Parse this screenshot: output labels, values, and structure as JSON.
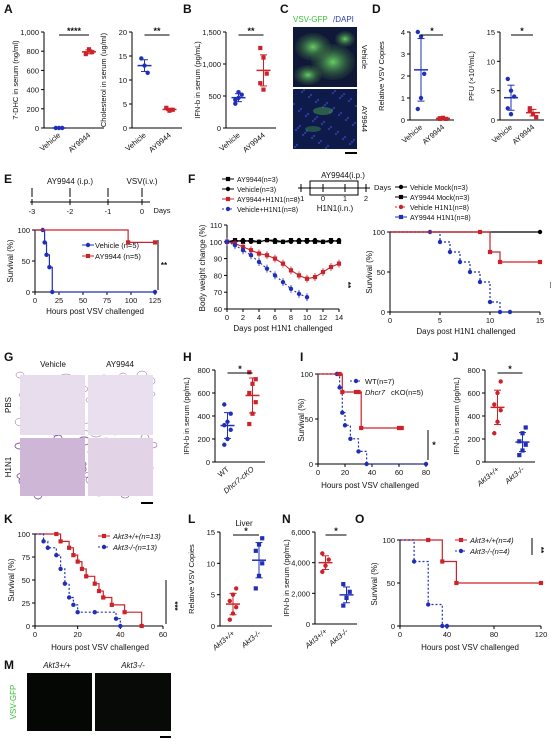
{
  "panels": {
    "A": "A",
    "B": "B",
    "C": "C",
    "D": "D",
    "E": "E",
    "F": "F",
    "G": "G",
    "H": "H",
    "I": "I",
    "J": "J",
    "K": "K",
    "L": "L",
    "M": "M",
    "N": "N",
    "O": "O"
  },
  "colors": {
    "red": "#cc2229",
    "blue": "#1f2fb8",
    "black": "#000000",
    "green": "#39c43a"
  },
  "A": {
    "chart1": {
      "ylabel": "7-DHC in serum (ng/ml)",
      "yticks": [
        "0",
        "200",
        "400",
        "600",
        "800",
        "1,000"
      ],
      "categories": [
        "Vehicle",
        "AY9944"
      ],
      "sig": "****"
    },
    "chart2": {
      "ylabel": "Cholesterol in serum (ug/ml)",
      "yticks": [
        "0",
        "5",
        "10",
        "15",
        "20"
      ],
      "categories": [
        "Vehicle",
        "AY9944"
      ],
      "sig": "**"
    }
  },
  "B": {
    "ylabel": "IFN-b in serum (pg/mL)",
    "yticks": [
      "0",
      "500",
      "1,000",
      "1,500"
    ],
    "categories": [
      "Vehicle",
      "AY9944"
    ],
    "sig": "**"
  },
  "C": {
    "title_green": "VSV-GFP",
    "title_blue": "/DAPI",
    "row1": "Vehicle",
    "row2": "AY9944"
  },
  "D": {
    "chart1": {
      "ylabel": "Relative VSV Copies",
      "yticks": [
        "0",
        "1",
        "2",
        "3",
        "4"
      ],
      "categories": [
        "Vehicle",
        "AY9944"
      ],
      "sig": "*"
    },
    "chart2": {
      "ylabel": "PFU (×10³/mL)",
      "yticks": [
        "0",
        "5",
        "10",
        "15"
      ],
      "categories": [
        "Vehicle",
        "AY9944"
      ],
      "sig": "*"
    }
  },
  "E": {
    "timeline": {
      "top1": "AY9944 (i.p.)",
      "top2": "VSV(i.v.)",
      "ticks": [
        "-3",
        "-2",
        "-1",
        "0"
      ],
      "days": "Days"
    },
    "ylabel": "Survival (%)",
    "xlabel": "Hours post VSV challenged",
    "yticks": [
      "0",
      "50",
      "100"
    ],
    "xticks": [
      "0",
      "25",
      "50",
      "75",
      "100",
      "125"
    ],
    "legend": [
      "Vehicle (n=5)",
      "AY9944 (n=5)"
    ],
    "sig": "**"
  },
  "F": {
    "timeline": {
      "top1": "AY9944(i.p.)",
      "days": "Days",
      "bottom": "H1N1(i.n.)",
      "ticks": [
        "-1",
        "0",
        "1",
        "2"
      ]
    },
    "left_legend": [
      "AY9944(n=3)",
      "Vehicle(n=3)",
      "AY9944+H1N1(n=8)",
      "Vehicle+H1N1(n=8)"
    ],
    "ylabel": "Body weight change (%)",
    "yticks": [
      "60",
      "70",
      "80",
      "90",
      "100",
      "110"
    ],
    "xticks": [
      "0",
      "2",
      "4",
      "6",
      "8",
      "10",
      "12",
      "14"
    ],
    "xlabel": "Days post H1N1 challenged",
    "sig_left": "**",
    "right_legend": [
      "Vehicle Mock(n=3)",
      "AY9944 Mock(n=3)",
      "Vehicle H1N1(n=8)",
      "AY9944 H1N1(n=8)"
    ],
    "right_ylabel": "Survival (%)",
    "right_yticks": [
      "0",
      "50",
      "100"
    ],
    "right_xticks": [
      "0",
      "5",
      "10",
      "15"
    ],
    "right_xlabel": "Days post H1N1 challenged",
    "sig_right": "**"
  },
  "G": {
    "col1": "Vehicle",
    "col2": "AY9944",
    "row1": "PBS",
    "row2": "H1N1"
  },
  "H": {
    "ylabel": "IFN-b in serum (pg/mL)",
    "yticks": [
      "0",
      "200",
      "400",
      "600",
      "800"
    ],
    "categories": [
      "WT",
      "Dhcr7-cKO"
    ],
    "sig": "*"
  },
  "I": {
    "legend": [
      "WT(n=7)",
      "cKO(n=5)"
    ],
    "legend_italic": "Dhcr7",
    "ylabel": "Survival (%)",
    "yticks": [
      "0",
      "50",
      "100"
    ],
    "xticks": [
      "0",
      "20",
      "40",
      "60",
      "80"
    ],
    "xlabel": "Hours post VSV challenged",
    "sig": "*"
  },
  "J": {
    "ylabel": "IFN-b in serum (pg/mL)",
    "yticks": [
      "0",
      "200",
      "400",
      "600",
      "800"
    ],
    "categories": [
      "Akt3+/+",
      "Akt3-/-"
    ],
    "sig": "*"
  },
  "K": {
    "legend": [
      "Akt3+/+(n=13)",
      "Akt3-/-(n=13)"
    ],
    "ylabel": "Survival (%)",
    "yticks": [
      "0",
      "25",
      "50",
      "75",
      "100"
    ],
    "xticks": [
      "0",
      "20",
      "40",
      "60"
    ],
    "xlabel": "Hours post VSV challenged",
    "sig": "***"
  },
  "L": {
    "title": "Liver",
    "ylabel": "Relative VSV Copies",
    "yticks": [
      "0",
      "5",
      "10",
      "15"
    ],
    "categories": [
      "Akt3+/+",
      "Akt3-/-"
    ],
    "sig": "*"
  },
  "M": {
    "col1": "Akt3+/+",
    "col2": "Akt3-/-",
    "side": "VSV-GFP"
  },
  "N": {
    "ylabel": "IFN-b in serum (pg/mL)",
    "yticks": [
      "0",
      "2,000",
      "4,000",
      "6,000"
    ],
    "categories": [
      "Akt3+/+",
      "Akt3-/-"
    ],
    "sig": "*"
  },
  "O": {
    "legend": [
      "Akt3+/+(n=4)",
      "Akt3-/-(n=4)"
    ],
    "ylabel": "Survival (%)",
    "yticks": [
      "0",
      "50",
      "100"
    ],
    "xticks": [
      "0",
      "40",
      "80",
      "120"
    ],
    "xlabel": "Hours post VSV challenged",
    "sig": "**"
  },
  "chart_data": [
    {
      "panel": "A-left",
      "type": "scatter",
      "categories": [
        "Vehicle",
        "AY9944"
      ],
      "series": [
        {
          "values": [
            [
              0,
              0,
              0
            ],
            [
              770,
              820,
              790
            ]
          ]
        }
      ],
      "ylim": [
        0,
        1000
      ]
    },
    {
      "panel": "A-right",
      "type": "scatter",
      "categories": [
        "Vehicle",
        "AY9944"
      ],
      "series": [
        {
          "values": [
            [
              14.5,
              13,
              11.5
            ],
            [
              4.2,
              3.6,
              3.8
            ]
          ]
        }
      ],
      "ylim": [
        0,
        20
      ]
    },
    {
      "panel": "B",
      "type": "scatter",
      "categories": [
        "Vehicle",
        "AY9944"
      ],
      "series": [
        {
          "values": [
            [
              380,
              470,
              520,
              440,
              560
            ],
            [
              700,
              1100,
              850,
              1250,
              600
            ]
          ]
        }
      ],
      "ylim": [
        0,
        1500
      ]
    },
    {
      "panel": "D-left",
      "type": "scatter",
      "categories": [
        "Vehicle",
        "AY9944"
      ],
      "series": [
        {
          "values": [
            [
              4.0,
              3.8,
              2.1,
              0.5,
              1.0
            ],
            [
              0.05,
              0.1,
              0.05,
              0.08
            ]
          ]
        }
      ],
      "ylim": [
        0,
        4
      ]
    },
    {
      "panel": "D-right",
      "type": "scatter",
      "categories": [
        "Vehicle",
        "AY9944"
      ],
      "series": [
        {
          "values": [
            [
              7,
              5,
              4,
              2,
              1
            ],
            [
              2,
              1,
              0.5,
              1.5
            ]
          ]
        }
      ],
      "ylim": [
        0,
        15
      ]
    },
    {
      "panel": "E",
      "type": "line",
      "series": [
        {
          "name": "Vehicle (n=5)",
          "x": [
            0,
            8,
            10,
            12,
            15,
            18,
            125
          ],
          "y": [
            100,
            100,
            80,
            60,
            40,
            0,
            0
          ]
        },
        {
          "name": "AY9944 (n=5)",
          "x": [
            0,
            97,
            125
          ],
          "y": [
            100,
            80,
            80
          ]
        }
      ],
      "xlim": [
        0,
        125
      ],
      "ylim": [
        0,
        100
      ]
    },
    {
      "panel": "F-left",
      "type": "line",
      "x": [
        0,
        1,
        2,
        3,
        4,
        5,
        6,
        7,
        8,
        9,
        10,
        11,
        12,
        13,
        14
      ],
      "series": [
        {
          "name": "AY9944(n=3)",
          "values": [
            100,
            101,
            100,
            101,
            100,
            101,
            100,
            100,
            101,
            100,
            101,
            100,
            100,
            101,
            100
          ]
        },
        {
          "name": "Vehicle(n=3)",
          "values": [
            100,
            100,
            101,
            100,
            100,
            101,
            101,
            100,
            100,
            101,
            100,
            101,
            100,
            100,
            101
          ]
        },
        {
          "name": "AY9944+H1N1(n=8)",
          "values": [
            100,
            99,
            97,
            95,
            93,
            92,
            90,
            87,
            83,
            80,
            78,
            79,
            82,
            85,
            87
          ]
        },
        {
          "name": "Vehicle+H1N1(n=8)",
          "values": [
            100,
            98,
            95,
            92,
            88,
            84,
            80,
            76,
            72,
            69,
            67,
            null,
            null,
            null,
            null
          ]
        }
      ],
      "ylim": [
        60,
        110
      ]
    },
    {
      "panel": "F-right",
      "type": "line",
      "series": [
        {
          "name": "Vehicle Mock(n=3)",
          "x": [
            0,
            15
          ],
          "y": [
            100,
            100
          ]
        },
        {
          "name": "AY9944 Mock(n=3)",
          "x": [
            0,
            15
          ],
          "y": [
            100,
            100
          ]
        },
        {
          "name": "Vehicle H1N1(n=8)",
          "x": [
            0,
            4,
            5,
            6,
            7,
            8,
            9,
            10,
            11,
            12
          ],
          "y": [
            100,
            100,
            87.5,
            75,
            62.5,
            50,
            37.5,
            12.5,
            0,
            0
          ]
        },
        {
          "name": "AY9944 H1N1(n=8)",
          "x": [
            0,
            9,
            10,
            11,
            15
          ],
          "y": [
            100,
            100,
            75,
            62.5,
            62.5
          ]
        }
      ],
      "xlim": [
        0,
        15
      ],
      "ylim": [
        0,
        100
      ]
    },
    {
      "panel": "H",
      "type": "scatter",
      "categories": [
        "WT",
        "Dhcr7-cKO"
      ],
      "series": [
        {
          "values": [
            [
              150,
              200,
              280,
              320,
              350,
              420,
              500
            ],
            [
              330,
              420,
              520,
              600,
              680,
              720,
              780
            ]
          ]
        }
      ],
      "ylim": [
        0,
        800
      ]
    },
    {
      "panel": "I",
      "type": "line",
      "series": [
        {
          "name": "WT(n=7)",
          "x": [
            0,
            14,
            16,
            18,
            20,
            24,
            30,
            36,
            80
          ],
          "y": [
            100,
            100,
            85,
            57,
            43,
            28,
            14,
            0,
            0
          ]
        },
        {
          "name": "Dhcr7 cKO(n=5)",
          "x": [
            0,
            16,
            18,
            30,
            32,
            60,
            62
          ],
          "y": [
            100,
            100,
            80,
            80,
            40,
            40,
            40
          ]
        }
      ],
      "xlim": [
        0,
        80
      ],
      "ylim": [
        0,
        100
      ]
    },
    {
      "panel": "J",
      "type": "scatter",
      "categories": [
        "Akt3+/+",
        "Akt3-/-"
      ],
      "series": [
        {
          "values": [
            [
              250,
              350,
              450,
              500,
              600,
              700
            ],
            [
              60,
              100,
              150,
              180,
              250,
              300
            ]
          ]
        }
      ],
      "ylim": [
        0,
        800
      ]
    },
    {
      "panel": "K",
      "type": "line",
      "series": [
        {
          "name": "Akt3+/+(n=13)",
          "x": [
            0,
            10,
            12,
            16,
            18,
            20,
            22,
            24,
            28,
            30,
            32,
            36,
            42,
            50
          ],
          "y": [
            100,
            100,
            92,
            85,
            77,
            70,
            62,
            54,
            46,
            38,
            31,
            23,
            15,
            0
          ]
        },
        {
          "name": "Akt3-/-(n=13)",
          "x": [
            0,
            4,
            6,
            10,
            12,
            14,
            16,
            18,
            20,
            28,
            38,
            40
          ],
          "y": [
            100,
            92,
            85,
            77,
            62,
            46,
            31,
            23,
            15,
            15,
            8,
            0
          ]
        }
      ],
      "xlim": [
        0,
        60
      ],
      "ylim": [
        0,
        100
      ]
    },
    {
      "panel": "L",
      "type": "scatter",
      "categories": [
        "Akt3+/+",
        "Akt3-/-"
      ],
      "series": [
        {
          "values": [
            [
              1,
              2,
              3,
              4,
              5,
              6
            ],
            [
              6,
              8,
              10,
              12,
              13,
              14
            ]
          ]
        }
      ],
      "ylim": [
        0,
        15
      ]
    },
    {
      "panel": "N",
      "type": "scatter",
      "categories": [
        "Akt3+/+",
        "Akt3-/-"
      ],
      "series": [
        {
          "values": [
            [
              3400,
              3800,
              4200,
              4600
            ],
            [
              1200,
              1700,
              2100,
              2600
            ]
          ]
        }
      ],
      "ylim": [
        0,
        6000
      ]
    },
    {
      "panel": "O",
      "type": "line",
      "series": [
        {
          "name": "Akt3+/+(n=4)",
          "x": [
            0,
            24,
            36,
            48,
            120
          ],
          "y": [
            100,
            100,
            75,
            50,
            50
          ]
        },
        {
          "name": "Akt3-/-(n=4)",
          "x": [
            0,
            12,
            24,
            36,
            40
          ],
          "y": [
            100,
            75,
            25,
            0,
            0
          ]
        }
      ],
      "xlim": [
        0,
        120
      ],
      "ylim": [
        0,
        100
      ]
    }
  ]
}
